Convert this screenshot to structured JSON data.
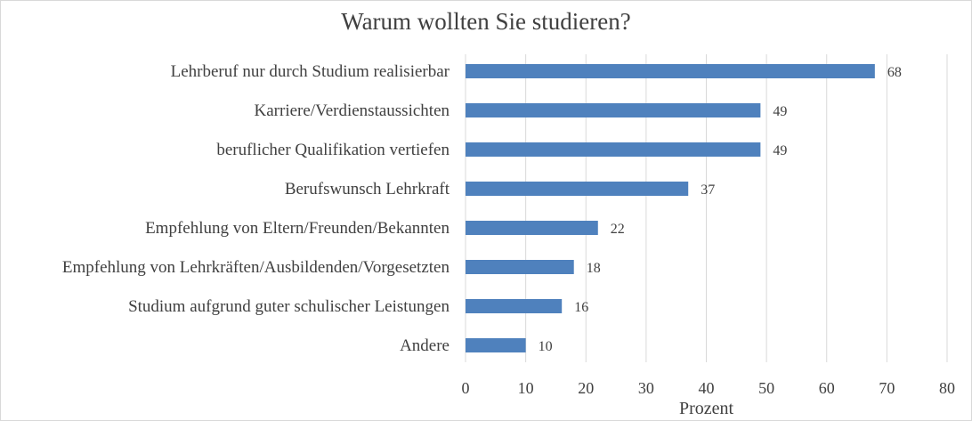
{
  "chart_data": {
    "type": "bar",
    "orientation": "horizontal",
    "title": "Warum wollten Sie studieren?",
    "xlabel": "Prozent",
    "ylabel": "",
    "categories": [
      "Lehrberuf nur durch Studium realisierbar",
      "Karriere/Verdienstaussichten",
      "beruflicher Qualifikation vertiefen",
      "Berufswunsch Lehrkraft",
      "Empfehlung von Eltern/Freunden/Bekannten",
      "Empfehlung von Lehrkräften/Ausbildenden/Vorgesetzten",
      "Studium aufgrund guter schulischer Leistungen",
      "Andere"
    ],
    "values": [
      68,
      49,
      49,
      37,
      22,
      18,
      16,
      10
    ],
    "xlim": [
      0,
      80
    ],
    "xticks": [
      0,
      10,
      20,
      30,
      40,
      50,
      60,
      70,
      80
    ],
    "grid": "vertical",
    "data_labels": true,
    "colors": {
      "bar": "#4f81bd",
      "text": "#404040",
      "grid": "#d9d9d9"
    }
  }
}
